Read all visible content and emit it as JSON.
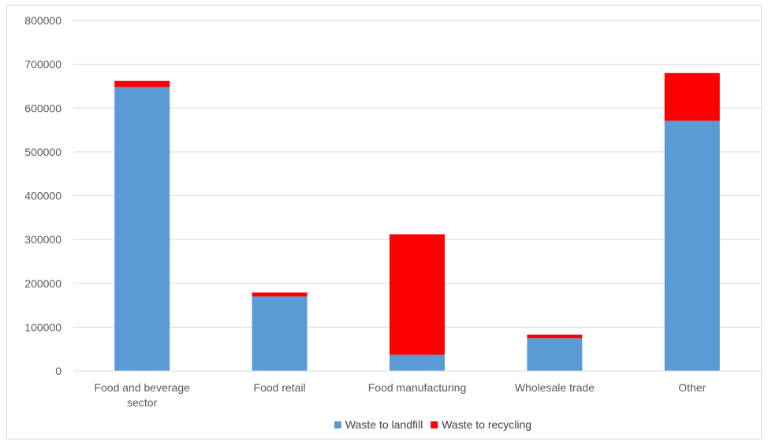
{
  "chart_data": {
    "type": "bar",
    "stacked": true,
    "categories": [
      [
        "Food and beverage",
        "sector"
      ],
      [
        "Food retail"
      ],
      [
        "Food manufacturing"
      ],
      [
        "Wholesale trade"
      ],
      [
        "Other"
      ]
    ],
    "series": [
      {
        "name": "Waste to landfill",
        "color": "#5b9bd5",
        "values": [
          648000,
          170000,
          37000,
          75000,
          571000
        ]
      },
      {
        "name": "Waste to recycling",
        "color": "#ff0000",
        "values": [
          14000,
          9000,
          275000,
          8000,
          109000
        ]
      }
    ],
    "ylim": [
      0,
      800000
    ],
    "yticks": [
      "0",
      "100000",
      "200000",
      "300000",
      "400000",
      "500000",
      "600000",
      "700000",
      "800000"
    ],
    "grid": true,
    "legend_position": "bottom"
  }
}
